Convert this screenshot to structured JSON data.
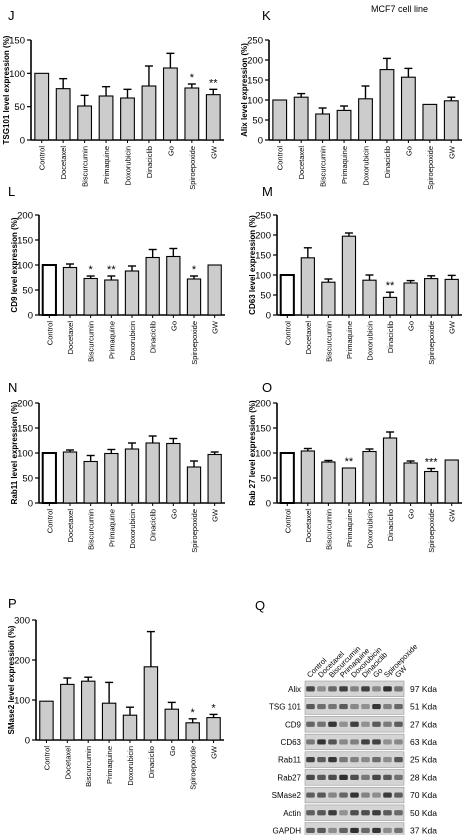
{
  "header": {
    "cell_line": "MCF7 cell line"
  },
  "chart_data": [
    {
      "panel": "J",
      "type": "bar",
      "ylabel": "TSG101 level expression (%)",
      "ylim": [
        0,
        150
      ],
      "yticks": [
        "0",
        "50",
        "100",
        "150"
      ],
      "categories": [
        "Control",
        "Docetaxel",
        "Biscurcumin",
        "Primaquine",
        "Doxorubicin",
        "Dinaciclib",
        "Go",
        "Spiroepoxide",
        "GW"
      ],
      "values": [
        100,
        77,
        51,
        66,
        63,
        81,
        108,
        78,
        68
      ],
      "errors": [
        0,
        15,
        16,
        14,
        13,
        30,
        22,
        6,
        8
      ],
      "significance": [
        "",
        "",
        "",
        "",
        "",
        "",
        "",
        "*",
        "**"
      ],
      "control_fill": "gray"
    },
    {
      "panel": "K",
      "type": "bar",
      "ylabel": "Alix level expression (%)",
      "ylim": [
        0,
        250
      ],
      "yticks": [
        "0",
        "50",
        "100",
        "150",
        "200",
        "250"
      ],
      "categories": [
        "Control",
        "Docetaxel",
        "Biscurcumin",
        "Primaquine",
        "Doxorubicin",
        "Dinaciclib",
        "Go",
        "Spiroepoxide",
        "GW"
      ],
      "values": [
        100,
        107,
        65,
        74,
        103,
        176,
        157,
        89,
        98
      ],
      "errors": [
        0,
        9,
        15,
        11,
        32,
        28,
        22,
        0,
        9
      ],
      "significance": [
        "",
        "",
        "",
        "",
        "",
        "",
        "",
        "",
        ""
      ],
      "control_fill": "gray"
    },
    {
      "panel": "L",
      "type": "bar",
      "ylabel": "CD9 level expression (%)",
      "ylim": [
        0,
        200
      ],
      "yticks": [
        "0",
        "50",
        "100",
        "150",
        "200"
      ],
      "categories": [
        "Control",
        "Docetaxel",
        "Biscurcumin",
        "Primaquine",
        "Doxorubicin",
        "Dinaciclib",
        "Go",
        "Spiroepoxide",
        "GW"
      ],
      "values": [
        100,
        95,
        73,
        70,
        88,
        115,
        117,
        72,
        100
      ],
      "errors": [
        0,
        7,
        5,
        8,
        10,
        16,
        16,
        6,
        0
      ],
      "significance": [
        "",
        "",
        "*",
        "**",
        "",
        "",
        "",
        "*",
        ""
      ],
      "control_fill": "white"
    },
    {
      "panel": "M",
      "type": "bar",
      "ylabel": "CD63 level expression (%)",
      "ylim": [
        0,
        250
      ],
      "yticks": [
        "0",
        "50",
        "100",
        "150",
        "200",
        "250"
      ],
      "categories": [
        "Control",
        "Docetaxel",
        "Biscurcumin",
        "Primaquine",
        "Doxorubicin",
        "Dinaciclib",
        "Go",
        "Spiroepoxide",
        "GW"
      ],
      "values": [
        100,
        143,
        82,
        197,
        87,
        44,
        80,
        91,
        89
      ],
      "errors": [
        0,
        25,
        8,
        8,
        13,
        13,
        6,
        7,
        10
      ],
      "significance": [
        "",
        "",
        "",
        "",
        "",
        "**",
        "",
        "",
        ""
      ],
      "control_fill": "white"
    },
    {
      "panel": "N",
      "type": "bar",
      "ylabel": "Rab11 level expression (%)",
      "ylim": [
        0,
        200
      ],
      "yticks": [
        "0",
        "50",
        "100",
        "150",
        "200"
      ],
      "categories": [
        "Control",
        "Docetaxel",
        "Biscurcumin",
        "Primaquine",
        "Doxorubicin",
        "Dinaciclib",
        "Go",
        "Spiroepoxide",
        "GW"
      ],
      "values": [
        100,
        102,
        83,
        99,
        108,
        120,
        119,
        72,
        97
      ],
      "errors": [
        0,
        4,
        12,
        8,
        12,
        14,
        10,
        12,
        5
      ],
      "significance": [
        "",
        "",
        "",
        "",
        "",
        "",
        "",
        "",
        ""
      ],
      "control_fill": "white"
    },
    {
      "panel": "O",
      "type": "bar",
      "ylabel": "Rab 27 level expression (%)",
      "ylim": [
        0,
        200
      ],
      "yticks": [
        "0",
        "50",
        "100",
        "150",
        "200"
      ],
      "categories": [
        "Control",
        "Docetaxel",
        "Biscurcumin",
        "Primaquine",
        "Doxorubicin",
        "Dinaciclio",
        "Go",
        "Spiroepoxide",
        "GW"
      ],
      "values": [
        100,
        104,
        82,
        70,
        103,
        130,
        80,
        63,
        86
      ],
      "errors": [
        0,
        5,
        3,
        0,
        5,
        12,
        4,
        6,
        0
      ],
      "significance": [
        "",
        "",
        "",
        "**",
        "",
        "",
        "",
        "***",
        ""
      ],
      "control_fill": "white"
    },
    {
      "panel": "P",
      "type": "bar",
      "ylabel": "SMase2 level expression (%)",
      "ylim": [
        0,
        300
      ],
      "yticks": [
        "0",
        "100",
        "200",
        "300"
      ],
      "categories": [
        "Control",
        "Docetaxel",
        "Biscurcumin",
        "Primaquine",
        "Doxorubicin",
        "Dinaciclio",
        "Go",
        "Spiroepoxide",
        "GW"
      ],
      "values": [
        97,
        139,
        147,
        92,
        62,
        183,
        77,
        43,
        56
      ],
      "errors": [
        0,
        16,
        10,
        52,
        20,
        88,
        17,
        10,
        8
      ],
      "significance": [
        "",
        "",
        "",
        "",
        "",
        "",
        "",
        "*",
        "*"
      ],
      "control_fill": "gray"
    }
  ],
  "western_blot": {
    "panel": "Q",
    "lanes": [
      "Control",
      "Docetaxel",
      "Biscurcumin",
      "Primaquine",
      "Doxorubicin",
      "Dinaciclib",
      "Go",
      "Spiroepoxide",
      "GW"
    ],
    "rows": [
      {
        "protein": "Alix",
        "size": "97 Kda"
      },
      {
        "protein": "TSG 101",
        "size": "51 Kda"
      },
      {
        "protein": "CD9",
        "size": "27 Kda"
      },
      {
        "protein": "CD63",
        "size": "63 Kda"
      },
      {
        "protein": "Rab11",
        "size": "25 Kda"
      },
      {
        "protein": "Rab27",
        "size": "28 Kda"
      },
      {
        "protein": "SMase2",
        "size": "70 Kda"
      },
      {
        "protein": "Actin",
        "size": "50 Kda"
      },
      {
        "protein": "GAPDH",
        "size": "37 Kda"
      }
    ],
    "colors": {
      "membrane": "#d4d4d4",
      "band": "#1a1a1a"
    }
  },
  "colors": {
    "bar_fill": "#cccccc",
    "bar_stroke": "#000000",
    "axis": "#000000"
  }
}
